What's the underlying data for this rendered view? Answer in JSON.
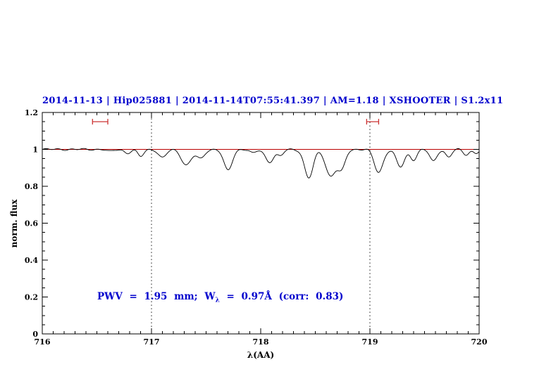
{
  "chart_data": {
    "type": "line",
    "title": "2014-11-13 | Hip025881 | 2014-11-14T07:55:41.397 | AM=1.18 | XSHOOTER | S1.2x11",
    "title_fields": {
      "night": "2014-11-13",
      "target": "Hip025881",
      "obs_time": "2014-11-14T07:55:41.397",
      "airmass": "AM=1.18",
      "instrument": "XSHOOTER",
      "slit": "S1.2x11"
    },
    "xlabel": "λ(AA)",
    "ylabel": "norm. flux",
    "xlim": [
      716,
      720
    ],
    "ylim": [
      0,
      1.2
    ],
    "grid": false,
    "legend": "none",
    "xticks": {
      "values": [
        716,
        717,
        718,
        719,
        720
      ],
      "labels": [
        "716",
        "717",
        "718",
        "719",
        "720"
      ],
      "minor_step": 0.1
    },
    "yticks": {
      "values": [
        0,
        0.2,
        0.4,
        0.6,
        0.8,
        1,
        1.2
      ],
      "labels": [
        "0",
        "0.2",
        "0.4",
        "0.6",
        "0.8",
        "1",
        "1.2"
      ],
      "minor_step": 0.05
    },
    "continuum": {
      "level": 1.0,
      "color": "#bb0000"
    },
    "vlines": {
      "x": [
        717,
        719
      ],
      "style": "dotted",
      "color": "#000000"
    },
    "bandpass_markers": [
      {
        "x_start": 716.46,
        "x_end": 716.6,
        "y": 1.15,
        "color": "#cc3333"
      },
      {
        "x_start": 718.97,
        "x_end": 719.08,
        "y": 1.15,
        "color": "#cc3333"
      }
    ],
    "annotation": {
      "text": "PWV = 1.95 mm; Wλ = 0.97Å (corr: 0.83)",
      "prefix": "PWV = 1.95 mm; W",
      "subscript": "λ",
      "suffix": " = 0.97Å (corr: 0.83)",
      "x": 716.5,
      "y": 0.2,
      "color": "#0000cd"
    },
    "measurements": {
      "pwv_mm": 1.95,
      "equivalent_width_A": 0.97,
      "correlation": 0.83
    },
    "series": [
      {
        "name": "normalized telluric spectrum",
        "color": "#000000",
        "model": "continuum_minus_gaussians",
        "continuum_level": 1.0,
        "sample_step": 0.008,
        "absorption_lines": [
          [
            716.62,
            0.012,
            0.03
          ],
          [
            716.78,
            0.02,
            0.03
          ],
          [
            716.9,
            0.038,
            0.028
          ],
          [
            717.1,
            0.046,
            0.035
          ],
          [
            717.32,
            0.085,
            0.045
          ],
          [
            717.45,
            0.05,
            0.035
          ],
          [
            717.7,
            0.115,
            0.038
          ],
          [
            717.93,
            0.022,
            0.028
          ],
          [
            718.08,
            0.068,
            0.038
          ],
          [
            718.18,
            0.035,
            0.028
          ],
          [
            718.44,
            0.155,
            0.04
          ],
          [
            718.64,
            0.145,
            0.045
          ],
          [
            718.74,
            0.105,
            0.035
          ],
          [
            719.08,
            0.125,
            0.04
          ],
          [
            719.28,
            0.095,
            0.038
          ],
          [
            719.4,
            0.055,
            0.03
          ],
          [
            719.58,
            0.065,
            0.032
          ],
          [
            719.72,
            0.042,
            0.028
          ],
          [
            719.88,
            0.028,
            0.028
          ],
          [
            719.97,
            0.02,
            0.025
          ]
        ]
      }
    ],
    "colors": {
      "title_blue": "#0000cd",
      "annotation_blue": "#0000cd",
      "continuum_red": "#bb0000",
      "marker_red": "#cc3333",
      "spectrum_black": "#000000"
    }
  }
}
